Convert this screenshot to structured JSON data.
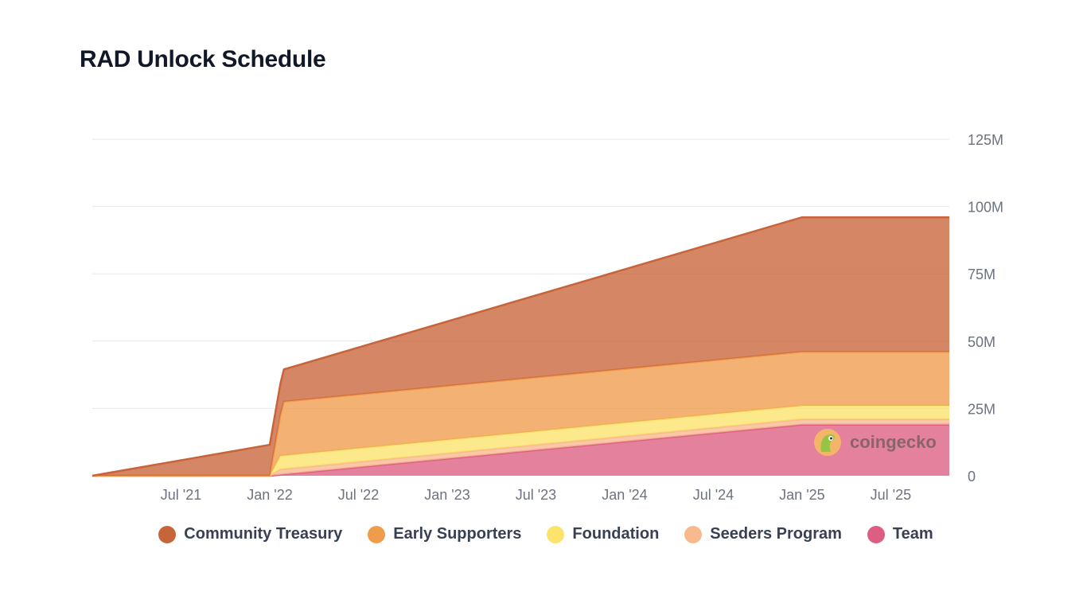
{
  "page": {
    "title": "RAD Unlock Schedule"
  },
  "watermark": {
    "text": "coingecko"
  },
  "chart_data": {
    "type": "area",
    "stacked": true,
    "title": "RAD Unlock Schedule",
    "xlabel": "",
    "ylabel": "",
    "ylim": [
      0,
      125
    ],
    "y_unit": "M",
    "y_ticks": [
      0,
      25,
      50,
      75,
      100,
      125
    ],
    "y_tick_labels": [
      "0",
      "25M",
      "50M",
      "75M",
      "100M",
      "125M"
    ],
    "x_range": [
      2021.0,
      2025.83
    ],
    "x_ticks": [
      2021.5,
      2022.0,
      2022.5,
      2023.0,
      2023.5,
      2024.0,
      2024.5,
      2025.0,
      2025.5
    ],
    "x_tick_labels": [
      "Jul '21",
      "Jan '22",
      "Jul '22",
      "Jan '23",
      "Jul '23",
      "Jan '24",
      "Jul '24",
      "Jan '25",
      "Jul '25"
    ],
    "legend_position": "bottom",
    "series": [
      {
        "name": "Team",
        "color": "#dc5e82",
        "x": [
          2021.0,
          2022.0,
          2025.0,
          2025.83
        ],
        "values": [
          0,
          0,
          19,
          19
        ]
      },
      {
        "name": "Seeders Program",
        "color": "#f9b98e",
        "x": [
          2021.0,
          2022.0,
          2022.06,
          2025.0,
          2025.83
        ],
        "values": [
          0,
          0,
          2,
          2,
          2
        ]
      },
      {
        "name": "Foundation",
        "color": "#fbe36c",
        "x": [
          2021.0,
          2022.0,
          2022.06,
          2025.0,
          2025.83
        ],
        "values": [
          0,
          0,
          5,
          5,
          5
        ]
      },
      {
        "name": "Early Supporters",
        "color": "#ef9c4c",
        "x": [
          2021.0,
          2022.0,
          2022.08,
          2025.0,
          2025.83
        ],
        "values": [
          0,
          0,
          20,
          20,
          20
        ]
      },
      {
        "name": "Community Treasury",
        "color": "#c8643a",
        "x": [
          2021.0,
          2022.0,
          2022.08,
          2025.0,
          2025.83
        ],
        "values": [
          0,
          11.5,
          12,
          50,
          50
        ]
      }
    ],
    "legend_order": [
      "Community Treasury",
      "Early Supporters",
      "Foundation",
      "Seeders Program",
      "Team"
    ]
  }
}
